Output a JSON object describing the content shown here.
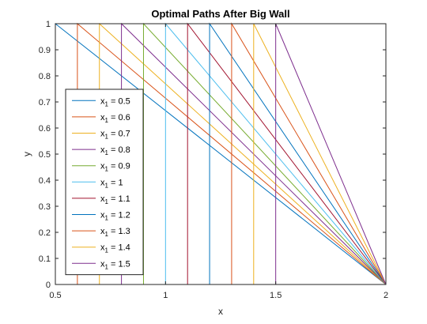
{
  "chart_data": {
    "type": "line",
    "title": "Optimal Paths After Big Wall",
    "xlabel": "x",
    "ylabel": "y",
    "xlim": [
      0.5,
      2
    ],
    "ylim": [
      0,
      1
    ],
    "x_ticks": [
      0.5,
      1,
      1.5,
      2
    ],
    "x_tick_labels": [
      "0.5",
      "1",
      "1.5",
      "2"
    ],
    "y_ticks": [
      0,
      0.1,
      0.2,
      0.3,
      0.4,
      0.5,
      0.6,
      0.7,
      0.8,
      0.9,
      1
    ],
    "y_tick_labels": [
      "0",
      "0.1",
      "0.2",
      "0.3",
      "0.4",
      "0.5",
      "0.6",
      "0.7",
      "0.8",
      "0.9",
      "1"
    ],
    "grid": false,
    "legend_position": "bottom-left",
    "series": [
      {
        "name": "x₁ = 0.5",
        "label_main": "x",
        "label_sub": "1",
        "label_rest": " = 0.5",
        "color": "#0072BD",
        "x": [
          0.5,
          0.5,
          2
        ],
        "y": [
          0,
          1,
          0
        ]
      },
      {
        "name": "x₁ = 0.6",
        "label_main": "x",
        "label_sub": "1",
        "label_rest": " = 0.6",
        "color": "#D95319",
        "x": [
          0.6,
          0.6,
          2
        ],
        "y": [
          0,
          1,
          0
        ]
      },
      {
        "name": "x₁ = 0.7",
        "label_main": "x",
        "label_sub": "1",
        "label_rest": " = 0.7",
        "color": "#EDB120",
        "x": [
          0.7,
          0.7,
          2
        ],
        "y": [
          0,
          1,
          0
        ]
      },
      {
        "name": "x₁ = 0.8",
        "label_main": "x",
        "label_sub": "1",
        "label_rest": " = 0.8",
        "color": "#7E2F8E",
        "x": [
          0.8,
          0.8,
          2
        ],
        "y": [
          0,
          1,
          0
        ]
      },
      {
        "name": "x₁ = 0.9",
        "label_main": "x",
        "label_sub": "1",
        "label_rest": " = 0.9",
        "color": "#77AC30",
        "x": [
          0.9,
          0.9,
          2
        ],
        "y": [
          0,
          1,
          0
        ]
      },
      {
        "name": "x₁ = 1",
        "label_main": "x",
        "label_sub": "1",
        "label_rest": " = 1",
        "color": "#4DBEEE",
        "x": [
          1,
          1,
          2
        ],
        "y": [
          0,
          1,
          0
        ]
      },
      {
        "name": "x₁ = 1.1",
        "label_main": "x",
        "label_sub": "1",
        "label_rest": " = 1.1",
        "color": "#A2142F",
        "x": [
          1.1,
          1.1,
          2
        ],
        "y": [
          0,
          1,
          0
        ]
      },
      {
        "name": "x₁ = 1.2",
        "label_main": "x",
        "label_sub": "1",
        "label_rest": " = 1.2",
        "color": "#0072BD",
        "x": [
          1.2,
          1.2,
          2
        ],
        "y": [
          0,
          1,
          0
        ]
      },
      {
        "name": "x₁ = 1.3",
        "label_main": "x",
        "label_sub": "1",
        "label_rest": " = 1.3",
        "color": "#D95319",
        "x": [
          1.3,
          1.3,
          2
        ],
        "y": [
          0,
          1,
          0
        ]
      },
      {
        "name": "x₁ = 1.4",
        "label_main": "x",
        "label_sub": "1",
        "label_rest": " = 1.4",
        "color": "#EDB120",
        "x": [
          1.4,
          1.4,
          2
        ],
        "y": [
          0,
          1,
          0
        ]
      },
      {
        "name": "x₁ = 1.5",
        "label_main": "x",
        "label_sub": "1",
        "label_rest": " = 1.5",
        "color": "#7E2F8E",
        "x": [
          1.5,
          1.5,
          2
        ],
        "y": [
          0,
          1,
          0
        ]
      }
    ]
  }
}
